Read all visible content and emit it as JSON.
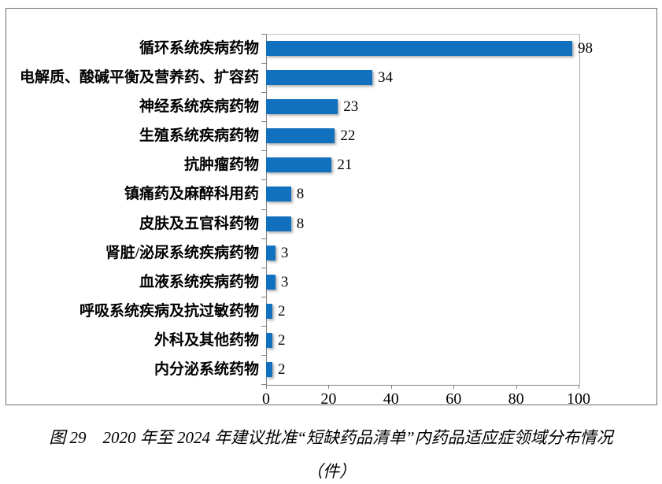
{
  "chart_data": {
    "type": "bar",
    "orientation": "horizontal",
    "categories": [
      "循环系统疾病药物",
      "电解质、酸碱平衡及营养药、扩容药",
      "神经系统疾病药物",
      "生殖系统疾病药物",
      "抗肿瘤药物",
      "镇痛药及麻醉科用药",
      "皮肤及五官科药物",
      "肾脏/泌尿系统疾病药物",
      "血液系统疾病药物",
      "呼吸系统疾病及抗过敏药物",
      "外科及其他药物",
      "内分泌系统药物"
    ],
    "values": [
      98,
      34,
      23,
      22,
      21,
      8,
      8,
      3,
      3,
      2,
      2,
      2
    ],
    "title": "",
    "xlabel": "",
    "ylabel": "",
    "xlim": [
      0,
      100
    ],
    "x_ticks": [
      0,
      20,
      40,
      60,
      80,
      100
    ],
    "data_labels": true,
    "grid": false,
    "legend": "none",
    "bar_color": "#1171BE",
    "axis_color": "#7f7f7f"
  },
  "caption": {
    "line1": "图 29　2020 年至 2024 年建议批准“短缺药品清单”内药品适应症领域分布情况",
    "line2": "（件）"
  }
}
